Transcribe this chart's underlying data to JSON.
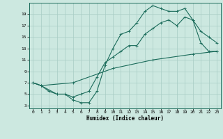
{
  "title": "",
  "xlabel": "Humidex (Indice chaleur)",
  "bg_color": "#cce8e0",
  "grid_color": "#a8ccc4",
  "line_color": "#1a6b5a",
  "xlim": [
    -0.5,
    23.5
  ],
  "ylim": [
    2.5,
    21
  ],
  "xticks": [
    0,
    1,
    2,
    3,
    4,
    5,
    6,
    7,
    8,
    9,
    10,
    11,
    12,
    13,
    14,
    15,
    16,
    17,
    18,
    19,
    20,
    21,
    22,
    23
  ],
  "yticks": [
    3,
    5,
    7,
    9,
    11,
    13,
    15,
    17,
    19
  ],
  "line1_x": [
    0,
    1,
    2,
    3,
    4,
    5,
    6,
    7,
    8,
    9,
    10,
    11,
    12,
    13,
    14,
    15,
    16,
    17,
    18,
    19,
    20,
    21,
    22,
    23
  ],
  "line1_y": [
    7,
    6.5,
    5.5,
    5,
    5,
    4,
    3.5,
    3.5,
    5.5,
    10,
    13,
    15.5,
    16,
    17.5,
    19.5,
    20.5,
    20,
    19.5,
    19.5,
    20,
    18,
    14,
    12.5,
    12.5
  ],
  "line2_x": [
    0,
    1,
    3,
    4,
    5,
    6,
    7,
    8,
    9,
    10,
    11,
    12,
    13,
    14,
    15,
    16,
    17,
    18,
    19,
    20,
    21,
    22,
    23
  ],
  "line2_y": [
    7,
    6.5,
    5,
    5,
    4.5,
    5,
    5.5,
    8,
    10.5,
    11.5,
    12.5,
    13.5,
    13.5,
    15.5,
    16.5,
    17.5,
    18,
    17,
    18.5,
    18,
    16,
    15,
    14
  ],
  "line3_x": [
    0,
    1,
    5,
    10,
    15,
    20,
    23
  ],
  "line3_y": [
    7,
    6.5,
    7,
    9.5,
    11,
    12,
    12.5
  ]
}
